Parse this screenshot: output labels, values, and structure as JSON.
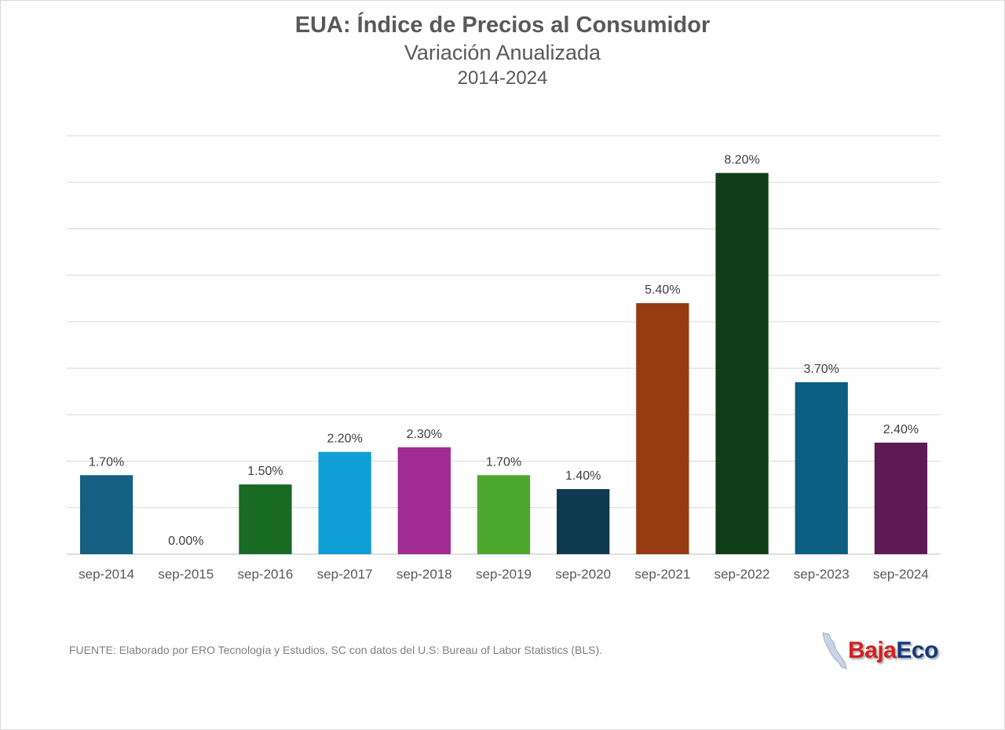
{
  "title": "EUA: Índice de Precios al Consumidor",
  "subtitle": "Variación Anualizada",
  "period": "2014-2024",
  "source": "FUENTE: Elaborado por ERO Tecnología y Estudios, SC con datos del U.S: Bureau of Labor Statistics (BLS).",
  "logo": {
    "part1": "Baja",
    "part2": "Eco"
  },
  "chart_data": {
    "type": "bar",
    "title": "EUA: Índice de Precios al Consumidor",
    "subtitle": "Variación Anualizada",
    "xlabel": "",
    "ylabel": "",
    "ylim": [
      0,
      9
    ],
    "grid": true,
    "legend": "none",
    "categories": [
      "sep-2014",
      "sep-2015",
      "sep-2016",
      "sep-2017",
      "sep-2018",
      "sep-2019",
      "sep-2020",
      "sep-2021",
      "sep-2022",
      "sep-2023",
      "sep-2024"
    ],
    "values": [
      1.7,
      0.0,
      1.5,
      2.2,
      2.3,
      1.7,
      1.4,
      5.4,
      8.2,
      3.7,
      2.4
    ],
    "labels": [
      "1.70%",
      "0.00%",
      "1.50%",
      "2.20%",
      "2.30%",
      "1.70%",
      "1.40%",
      "5.40%",
      "8.20%",
      "3.70%",
      "2.40%"
    ],
    "colors": [
      "#156082",
      "#156082",
      "#196b24",
      "#0f9ed5",
      "#a02b93",
      "#4ea72e",
      "#0e3a50",
      "#953a11",
      "#103f17",
      "#0a5f82",
      "#5e1a55"
    ]
  }
}
